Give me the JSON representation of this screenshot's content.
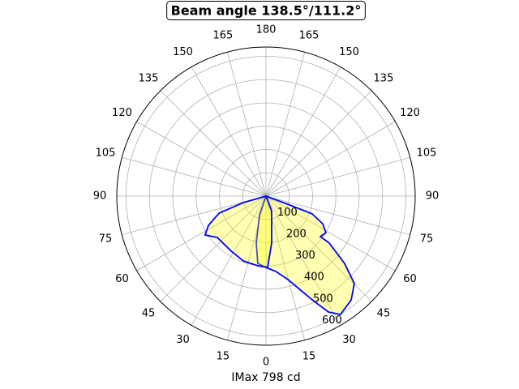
{
  "chart_data": {
    "type": "polar",
    "title": "Beam angle 138.5°/111.2°",
    "xlabel": "IMax 798 cd",
    "ylim": [
      0,
      640
    ],
    "yticks": [
      100,
      200,
      300,
      400,
      500,
      600
    ],
    "xticks": [
      0,
      15,
      30,
      45,
      60,
      75,
      90,
      105,
      120,
      135,
      150,
      165,
      180,
      {
        "value": 195,
        "label": "165"
      },
      {
        "value": 210,
        "label": "150"
      },
      {
        "value": 225,
        "label": "135"
      },
      {
        "value": 240,
        "label": "120"
      },
      {
        "value": 255,
        "label": "105"
      },
      {
        "value": 270,
        "label": "90"
      },
      {
        "value": 285,
        "label": "75"
      },
      {
        "value": 300,
        "label": "60"
      },
      {
        "value": 315,
        "label": "45"
      },
      {
        "value": 330,
        "label": "30"
      },
      {
        "value": 345,
        "label": "15"
      }
    ],
    "grid": true,
    "fill": "#ffff00",
    "series": [
      {
        "color": "#0000ff",
        "x": [
          69.4,
          68.9,
          64,
          58.7,
          53.3,
          53.4,
          49.4,
          45.3,
          39.4,
          32.2,
          28.3,
          24,
          14.7,
          7.4,
          0,
          -6.9,
          -11.7,
          -19
        ],
        "values": [
          119,
          212,
          271,
          301,
          291,
          338,
          444,
          533,
          576,
          600,
          565,
          487,
          370,
          326,
          306,
          291,
          206,
          85
        ]
      },
      {
        "color": "#0000ff",
        "x": [
          -74,
          -70,
          -63,
          -57.4,
          -49.6,
          -32.3,
          -19.3,
          -6.6,
          1.3,
          6.9,
          21
        ],
        "values": [
          101,
          214,
          277,
          310,
          274,
          279,
          295,
          301,
          306,
          203,
          67
        ]
      }
    ]
  }
}
